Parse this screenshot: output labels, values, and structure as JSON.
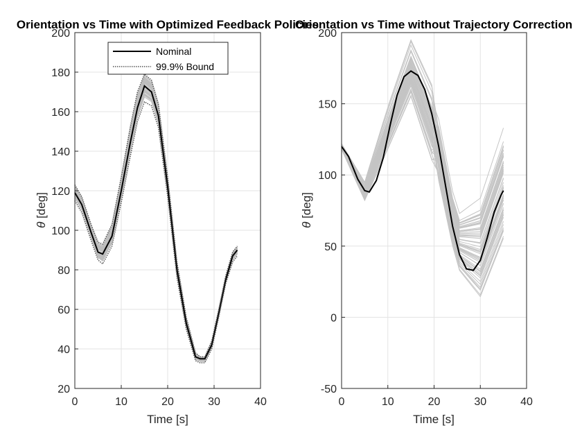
{
  "chart_data": [
    {
      "type": "line",
      "title": "Orientation vs Time with Optimized Feedback Policies",
      "xlabel": "Time [s]",
      "ylabel_symbol": "θ",
      "ylabel_unit": "[deg]",
      "xlim": [
        0,
        40
      ],
      "ylim": [
        20,
        200
      ],
      "xticks": [
        0,
        10,
        20,
        30,
        40
      ],
      "yticks": [
        20,
        40,
        60,
        80,
        100,
        120,
        140,
        160,
        180,
        200
      ],
      "grid": true,
      "legend": "top-center",
      "t": [
        0,
        1.5,
        3.5,
        5,
        6,
        8,
        10,
        12,
        13.5,
        15,
        16.5,
        18,
        20,
        22,
        24,
        26,
        27,
        28,
        29.5,
        31,
        32.5,
        34,
        35
      ],
      "series": [
        {
          "name": "Nominal",
          "style": "solid",
          "color": "#000000",
          "values": [
            119,
            113,
            99,
            89,
            88,
            97,
            120,
            145,
            162,
            173,
            170,
            158,
            122,
            80,
            53,
            36,
            35,
            35,
            42,
            58,
            75,
            87,
            90
          ]
        },
        {
          "name": "99.9% Bound",
          "style": "dotted",
          "color": "#555555",
          "values": [
            123,
            117,
            103,
            94,
            93,
            103,
            127,
            153,
            170,
            179,
            176,
            164,
            127,
            84,
            56,
            38,
            36,
            36,
            44,
            60,
            77,
            89,
            92
          ]
        },
        {
          "name": "",
          "style": "dotted",
          "color": "#555555",
          "values": [
            115,
            109,
            95,
            85,
            83,
            92,
            114,
            138,
            155,
            165,
            163,
            152,
            117,
            76,
            50,
            34,
            33,
            33,
            40,
            56,
            73,
            84,
            87
          ]
        }
      ],
      "monte_carlo": {
        "count": 40,
        "color": "#bdbdbd",
        "spread_fraction": 0.9
      }
    },
    {
      "type": "line",
      "title": "Orientation vs Time without Trajectory Correction",
      "xlabel": "Time [s]",
      "ylabel_symbol": "θ",
      "ylabel_unit": "[deg]",
      "xlim": [
        0,
        40
      ],
      "ylim": [
        -50,
        200
      ],
      "xticks": [
        0,
        10,
        20,
        30,
        40
      ],
      "yticks": [
        -50,
        0,
        50,
        100,
        150,
        200
      ],
      "grid": true,
      "t": [
        0,
        1.5,
        3.5,
        5,
        6,
        7.5,
        9,
        10.5,
        12,
        13.5,
        15,
        16.5,
        18,
        19.5,
        21,
        22.5,
        24,
        25.5,
        27,
        28.5,
        30,
        31.5,
        33,
        34.5,
        35
      ],
      "series": [
        {
          "name": "",
          "style": "solid",
          "color": "#000000",
          "values": [
            120,
            113,
            97,
            89,
            88,
            96,
            112,
            135,
            156,
            169,
            173,
            170,
            160,
            143,
            120,
            92,
            64,
            44,
            34,
            33,
            40,
            56,
            74,
            86,
            89
          ]
        }
      ],
      "monte_carlo": {
        "count": 60,
        "color": "#c4c4c4",
        "t_spread": [
          0,
          5,
          10,
          15,
          20,
          25,
          30,
          35
        ],
        "low": [
          118,
          82,
          118,
          155,
          105,
          30,
          5,
          45
        ],
        "high": [
          122,
          95,
          148,
          195,
          160,
          75,
          90,
          140
        ]
      }
    }
  ]
}
